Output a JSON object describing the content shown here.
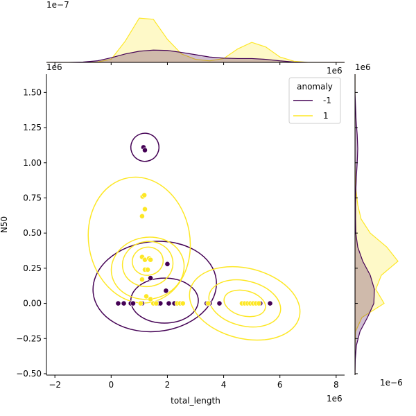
{
  "chart_data": {
    "type": "scatter",
    "title": "",
    "xlabel": "total_length",
    "ylabel": "N50",
    "x_offset_text": "1e6",
    "y_offset_text": "1e6",
    "top_marginal_offset_text": "1e−7",
    "top_marginal_right_offset_text": "1e6",
    "right_marginal_offset_text": "1e6",
    "right_marginal_bottom_offset_text": "1e−6",
    "xlim": [
      -2.3,
      8.3
    ],
    "ylim": [
      -0.51,
      1.63
    ],
    "x_ticks": [
      -2,
      0,
      2,
      4,
      6,
      8
    ],
    "y_ticks": [
      -0.5,
      -0.25,
      0.0,
      0.25,
      0.5,
      0.75,
      1.0,
      1.25,
      1.5
    ],
    "x_tick_labels": [
      "−2",
      "0",
      "2",
      "4",
      "6",
      "8"
    ],
    "y_tick_labels": [
      "−0.50",
      "−0.25",
      "0.00",
      "0.25",
      "0.50",
      "0.75",
      "1.00",
      "1.25",
      "1.50"
    ],
    "legend": {
      "title": "anomaly",
      "position": "top-right",
      "entries": [
        {
          "label": "-1",
          "color": "#440154"
        },
        {
          "label": "1",
          "color": "#fde725"
        }
      ]
    },
    "colors": {
      "anomaly_neg": "#440154",
      "anomaly_pos": "#fde725"
    },
    "series": [
      {
        "name": "-1",
        "color": "#440154",
        "points": [
          [
            0.25,
            0.0
          ],
          [
            0.45,
            0.0
          ],
          [
            0.7,
            0.0
          ],
          [
            0.78,
            0.0
          ],
          [
            1.1,
            0.0
          ],
          [
            1.15,
            1.11
          ],
          [
            1.2,
            1.09
          ],
          [
            1.4,
            0.18
          ],
          [
            1.5,
            0.0
          ],
          [
            1.65,
            0.0
          ],
          [
            1.75,
            0.0
          ],
          [
            1.95,
            0.09
          ],
          [
            2.0,
            0.28
          ],
          [
            2.05,
            0.0
          ],
          [
            2.25,
            0.0
          ],
          [
            3.4,
            0.0
          ],
          [
            3.5,
            0.0
          ],
          [
            3.85,
            0.0
          ],
          [
            5.3,
            0.0
          ],
          [
            5.65,
            0.0
          ]
        ]
      },
      {
        "name": "1",
        "color": "#fde725",
        "points": [
          [
            1.05,
            0.0
          ],
          [
            1.1,
            0.17
          ],
          [
            1.1,
            0.33
          ],
          [
            1.1,
            0.62
          ],
          [
            1.12,
            0.76
          ],
          [
            1.18,
            0.77
          ],
          [
            1.2,
            0.67
          ],
          [
            1.2,
            0.31
          ],
          [
            1.2,
            0.24
          ],
          [
            1.25,
            0.05
          ],
          [
            1.3,
            0.24
          ],
          [
            1.35,
            0.32
          ],
          [
            1.4,
            0.31
          ],
          [
            1.4,
            0.03
          ],
          [
            1.5,
            0.0
          ],
          [
            1.6,
            0.0
          ],
          [
            2.35,
            0.0
          ],
          [
            2.45,
            0.0
          ],
          [
            2.55,
            0.0
          ],
          [
            3.45,
            0.0
          ],
          [
            4.65,
            0.0
          ],
          [
            4.75,
            0.0
          ],
          [
            4.85,
            0.0
          ],
          [
            4.95,
            0.0
          ],
          [
            5.05,
            0.0
          ],
          [
            5.15,
            0.0
          ],
          [
            5.25,
            0.0
          ]
        ]
      }
    ],
    "kde_contours": [
      {
        "series": "-1",
        "type": "ellipse",
        "cx": 1.55,
        "cy": 0.12,
        "rx": 2.2,
        "ry": 0.32,
        "rot": -6
      },
      {
        "series": "-1",
        "type": "ellipse",
        "cx": 1.9,
        "cy": 0.02,
        "rx": 1.2,
        "ry": 0.16,
        "rot": 0
      },
      {
        "series": "-1",
        "type": "ellipse",
        "cx": 1.2,
        "cy": 1.11,
        "rx": 0.5,
        "ry": 0.1,
        "rot": -20
      },
      {
        "series": "1",
        "type": "ellipse",
        "cx": 1.0,
        "cy": 0.45,
        "rx": 1.8,
        "ry": 0.45,
        "rot": -10
      },
      {
        "series": "1",
        "type": "ellipse",
        "cx": 1.3,
        "cy": 0.25,
        "rx": 1.3,
        "ry": 0.22,
        "rot": -10
      },
      {
        "series": "1",
        "type": "ellipse",
        "cx": 1.3,
        "cy": 0.28,
        "rx": 0.9,
        "ry": 0.16,
        "rot": -10
      },
      {
        "series": "1",
        "type": "ellipse",
        "cx": 1.3,
        "cy": 0.3,
        "rx": 0.55,
        "ry": 0.1,
        "rot": -10
      },
      {
        "series": "1",
        "type": "ellipse",
        "cx": 4.75,
        "cy": 0.0,
        "rx": 2.0,
        "ry": 0.25,
        "rot": 14
      },
      {
        "series": "1",
        "type": "ellipse",
        "cx": 4.75,
        "cy": 0.0,
        "rx": 1.3,
        "ry": 0.16,
        "rot": 14
      },
      {
        "series": "1",
        "type": "ellipse",
        "cx": 4.75,
        "cy": 0.0,
        "rx": 0.75,
        "ry": 0.09,
        "rot": 14
      }
    ],
    "marginal_x": {
      "x": [
        -2.3,
        -1.5,
        -1.0,
        -0.5,
        0.0,
        0.5,
        1.0,
        1.5,
        2.0,
        2.5,
        3.0,
        3.5,
        4.0,
        4.5,
        5.0,
        5.5,
        6.0,
        6.5,
        7.0,
        7.5,
        8.3
      ],
      "neg": [
        0.0,
        0.0,
        0.01,
        0.04,
        0.12,
        0.22,
        0.29,
        0.32,
        0.31,
        0.26,
        0.2,
        0.14,
        0.11,
        0.1,
        0.1,
        0.08,
        0.04,
        0.01,
        0.0,
        0.0,
        0.0
      ],
      "pos": [
        0.0,
        0.0,
        0.0,
        0.01,
        0.08,
        0.55,
        1.15,
        1.12,
        0.6,
        0.22,
        0.08,
        0.04,
        0.1,
        0.35,
        0.52,
        0.4,
        0.14,
        0.03,
        0.0,
        0.0,
        0.0
      ],
      "max": 1.35
    },
    "marginal_y": {
      "y": [
        -0.51,
        -0.4,
        -0.3,
        -0.2,
        -0.1,
        0.0,
        0.1,
        0.2,
        0.3,
        0.4,
        0.5,
        0.6,
        0.7,
        0.8,
        0.9,
        1.0,
        1.1,
        1.2,
        1.3,
        1.4,
        1.5,
        1.63
      ],
      "neg": [
        0.0,
        0.01,
        0.05,
        0.18,
        0.45,
        0.68,
        0.7,
        0.55,
        0.28,
        0.1,
        0.03,
        0.02,
        0.02,
        0.03,
        0.05,
        0.08,
        0.1,
        0.08,
        0.04,
        0.02,
        0.0,
        0.0
      ],
      "pos": [
        0.0,
        0.0,
        0.0,
        0.02,
        0.25,
        1.05,
        0.75,
        0.95,
        1.55,
        1.15,
        0.55,
        0.22,
        0.1,
        0.04,
        0.01,
        0.0,
        0.0,
        0.0,
        0.0,
        0.0,
        0.0,
        0.0
      ],
      "max": 1.75
    }
  }
}
